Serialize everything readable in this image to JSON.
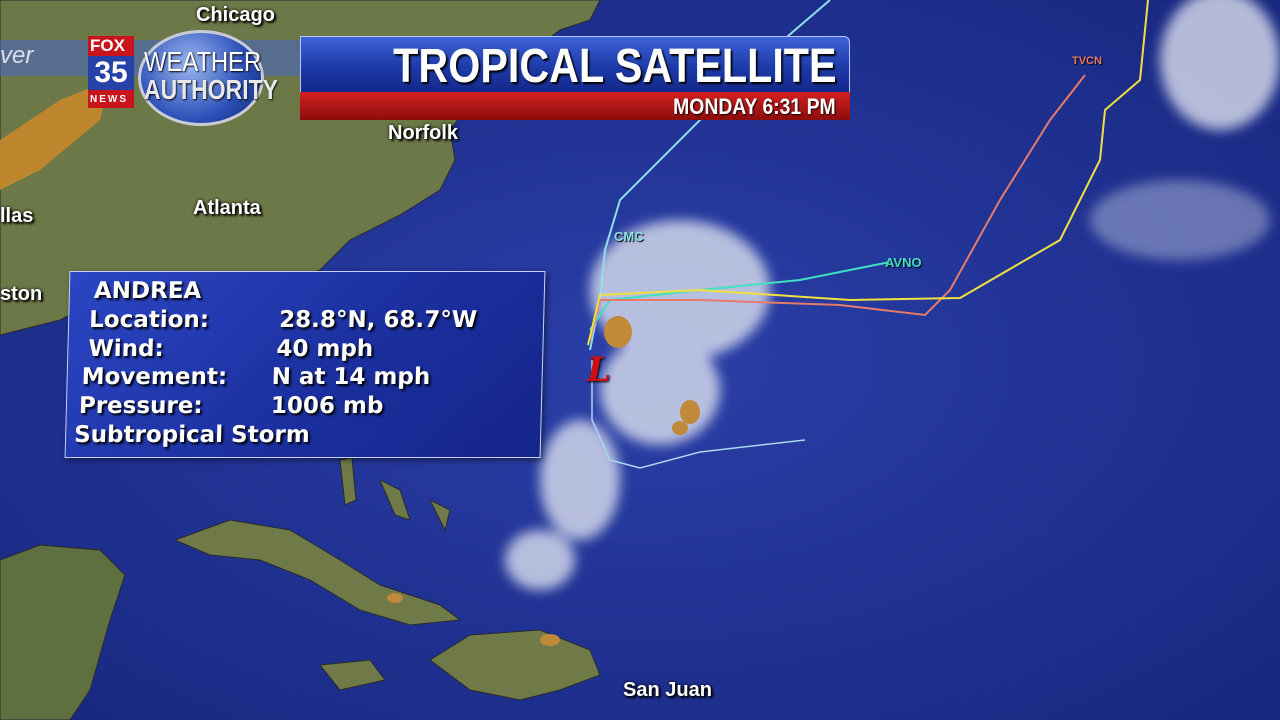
{
  "header": {
    "title": "TROPICAL SATELLITE",
    "datetime": "MONDAY  6:31 PM",
    "left_strip_text": "ver",
    "logo": {
      "station": "FOX",
      "channel": "35",
      "news": "NEWS",
      "brand_line1": "WEATHER",
      "brand_line2": "AUTHORITY"
    }
  },
  "cities": {
    "chicago": "Chicago",
    "norfolk": "Norfolk",
    "atlanta": "Atlanta",
    "dallas": "llas",
    "houston": "ston",
    "san_juan": "San Juan"
  },
  "models": [
    {
      "name": "CMC",
      "color": "#8fe0e8"
    },
    {
      "name": "AVNO",
      "color": "#40e0c0"
    },
    {
      "name": "TVCN",
      "color": "#e87a6a"
    },
    {
      "name": "",
      "color": "#f0e040"
    }
  ],
  "storm": {
    "name": "ANDREA",
    "location_label": "Location:",
    "location": "28.8°N, 68.7°W",
    "wind_label": "Wind:",
    "wind": "40 mph",
    "movement_label": "Movement:",
    "movement": "N at 14 mph",
    "pressure_label": "Pressure:",
    "pressure": "1006 mb",
    "classification": "Subtropical Storm",
    "symbol": "L",
    "symbol_color": "#d01010"
  },
  "colors": {
    "ocean": "#1c2f8a",
    "land": "#6f7a4a",
    "title_bar": "#1d3aa8",
    "date_bar": "#c01818"
  }
}
